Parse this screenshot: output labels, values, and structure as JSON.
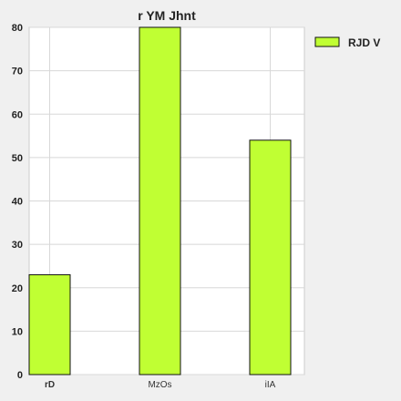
{
  "chart_data": {
    "type": "bar",
    "title": "r YM Jhnt",
    "xlabel": "",
    "ylabel": "",
    "categories": [
      "rD",
      "MzOs",
      "iIA"
    ],
    "series": [
      {
        "name": "RJD V",
        "values": [
          23,
          80,
          54
        ],
        "color": "#c0ff33"
      }
    ],
    "ylim": [
      0,
      80
    ],
    "yticks": [
      0,
      10,
      20,
      30,
      40,
      50,
      60,
      70,
      80
    ],
    "grid": true,
    "legend": "top-right"
  },
  "colors": {
    "bar_fill": "#c0ff33",
    "bar_stroke": "#111111",
    "grid": "#d8d8d8",
    "plot_background": "#ffffff",
    "page_background": "#f0f0f0"
  }
}
